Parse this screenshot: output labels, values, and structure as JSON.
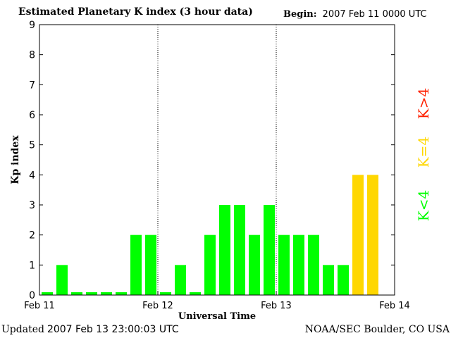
{
  "header": {
    "title": "Estimated Planetary K index (3 hour data)",
    "begin_label": "Begin:",
    "begin_value": "2007 Feb 11 0000 UTC"
  },
  "footer": {
    "updated_label": "Updated",
    "updated_value": "2007 Feb 13 23:00:03 UTC",
    "credit": "NOAA/SEC Boulder, CO USA"
  },
  "legend": {
    "low": "K<4",
    "equal": "K=4",
    "high": "K>4"
  },
  "colors": {
    "low": "#00ff00",
    "equal": "#ffd700",
    "high": "#ff2000"
  },
  "chart_data": {
    "type": "bar",
    "title": "Estimated Planetary K index (3 hour data)",
    "xlabel": "Universal Time",
    "ylabel": "Kp index",
    "ylim": [
      0,
      9
    ],
    "yticks": [
      0,
      1,
      2,
      3,
      4,
      5,
      6,
      7,
      8,
      9
    ],
    "xlim_days": [
      0,
      3
    ],
    "xtick_labels": [
      "Feb 11",
      "Feb 12",
      "Feb 13",
      "Feb 14"
    ],
    "day_separators": [
      "Feb 12",
      "Feb 13"
    ],
    "bins_per_day": 8,
    "values": [
      0,
      1,
      0,
      0,
      0,
      0,
      2,
      2,
      0,
      1,
      0,
      2,
      3,
      3,
      2,
      3,
      2,
      2,
      2,
      1,
      1,
      4,
      4
    ],
    "color_rule": "K<4 green, K=4 yellow, K>4 red"
  }
}
